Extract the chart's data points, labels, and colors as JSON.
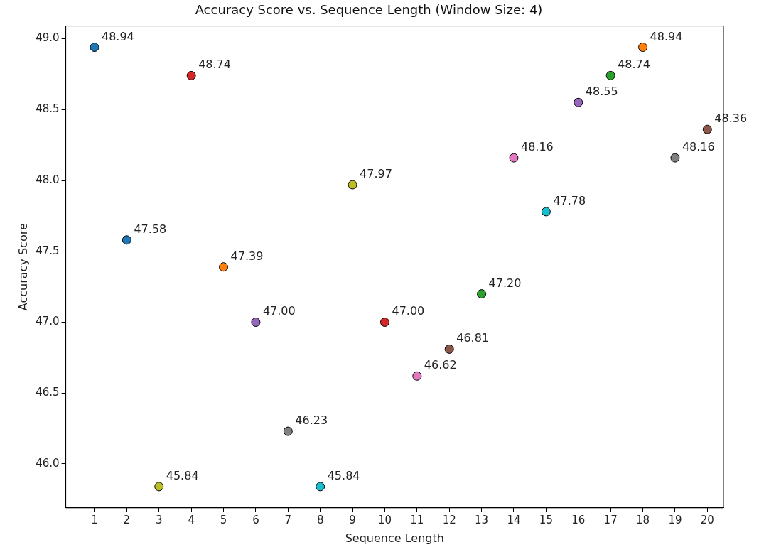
{
  "chart_data": {
    "type": "scatter",
    "title": "Accuracy Score vs. Sequence Length (Window Size: 4)",
    "xlabel": "Sequence Length",
    "ylabel": "Accuracy Score",
    "x": [
      1,
      2,
      3,
      4,
      5,
      6,
      7,
      8,
      9,
      10,
      11,
      12,
      13,
      14,
      15,
      16,
      17,
      18,
      19,
      20
    ],
    "values": [
      48.94,
      47.58,
      45.84,
      48.74,
      47.39,
      47.0,
      46.23,
      45.84,
      47.97,
      47.0,
      46.62,
      46.81,
      47.2,
      48.16,
      47.78,
      48.55,
      48.74,
      48.94,
      48.16,
      48.36
    ],
    "value_labels": [
      "48.94",
      "47.58",
      "45.84",
      "48.74",
      "47.39",
      "47.00",
      "46.23",
      "45.84",
      "47.97",
      "47.00",
      "46.62",
      "46.81",
      "47.20",
      "48.16",
      "47.78",
      "48.55",
      "48.74",
      "48.94",
      "48.16",
      "48.36"
    ],
    "colors": [
      "#1f77b4",
      "#1f77b4",
      "#bcbd22",
      "#d62728",
      "#ff7f0e",
      "#9467bd",
      "#7f7f7f",
      "#17becf",
      "#bcbd22",
      "#d62728",
      "#e377c2",
      "#8c564b",
      "#2ca02c",
      "#e377c2",
      "#17becf",
      "#9467bd",
      "#2ca02c",
      "#ff7f0e",
      "#7f7f7f",
      "#8c564b"
    ],
    "marker": "circle",
    "xlim": [
      0.11,
      20.5
    ],
    "xticks": [
      1,
      2,
      3,
      4,
      5,
      6,
      7,
      8,
      9,
      10,
      11,
      12,
      13,
      14,
      15,
      16,
      17,
      18,
      19,
      20
    ],
    "ylim": [
      45.69,
      49.09
    ],
    "yticks": [
      {
        "value": 46,
        "label": "46.0"
      },
      {
        "value": 46.5,
        "label": "46.5"
      },
      {
        "value": 47,
        "label": "47.0"
      },
      {
        "value": 47.5,
        "label": "47.5"
      },
      {
        "value": 48,
        "label": "48.0"
      },
      {
        "value": 48.5,
        "label": "48.5"
      },
      {
        "value": 49,
        "label": "49.0"
      }
    ],
    "grid": false,
    "legend": false
  }
}
